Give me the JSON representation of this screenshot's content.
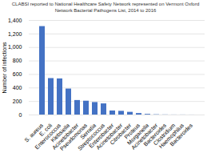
{
  "chart_data": {
    "type": "bar",
    "title": "CLABSI reported to National Healthcare Safety Network represented on Vermont Oxford\nNetwork Bacterial Pathogens List, 2014 to 2016",
    "ylabel": "Number of infections",
    "categories": [
      "S. aureus",
      "E. coli",
      "Enterococcus",
      "Klebsiella",
      "Acinetobacter",
      "Pseudomonas",
      "Serratia",
      "Streptococcus",
      "Enterobacter",
      "Acinetobacter",
      "Citrobacter",
      "Proteus",
      "Morganella",
      "Acinetobacter",
      "Bacteroides",
      "Clostridium",
      "Haemophilus",
      "Bacteroides"
    ],
    "values": [
      1310,
      540,
      535,
      385,
      215,
      205,
      185,
      165,
      60,
      55,
      40,
      22,
      10,
      4,
      2,
      1,
      1,
      0.5
    ],
    "color": "#4472c4",
    "ylim": [
      0,
      1400
    ],
    "yticks": [
      0,
      200,
      400,
      600,
      800,
      1000,
      1200,
      1400
    ],
    "grid": true
  }
}
